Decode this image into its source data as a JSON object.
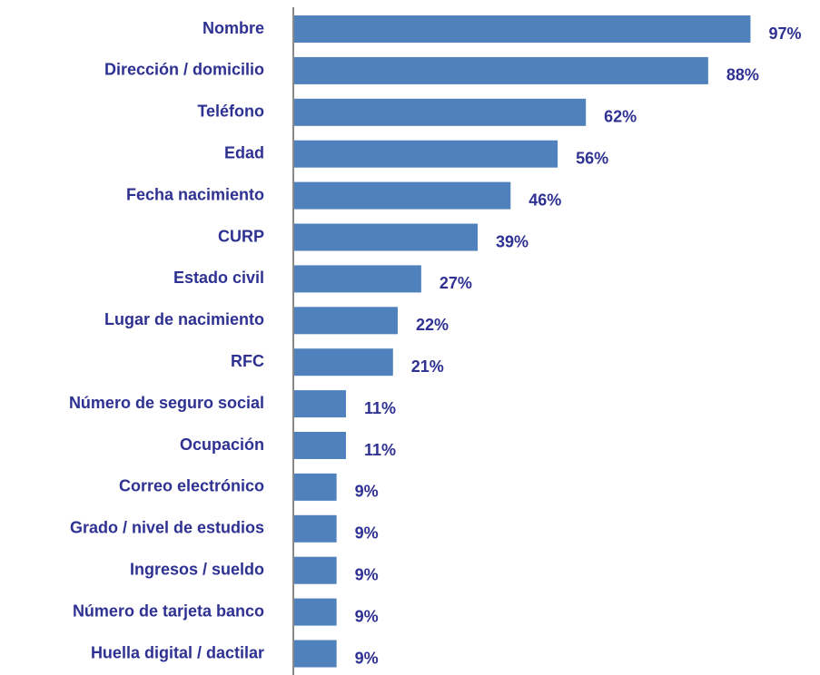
{
  "chart_data": {
    "type": "hbar",
    "categories": [
      "Nombre",
      "Dirección / domicilio",
      "Teléfono",
      "Edad",
      "Fecha nacimiento",
      "CURP",
      "Estado civil",
      "Lugar de nacimiento",
      "RFC",
      "Número de seguro social",
      "Ocupación",
      "Correo electrónico",
      "Grado / nivel de estudios",
      "Ingresos / sueldo",
      "Número de tarjeta  banco",
      "Huella digital  / dactilar"
    ],
    "values": [
      97,
      88,
      62,
      56,
      46,
      39,
      27,
      22,
      21,
      11,
      11,
      9,
      9,
      9,
      9,
      9
    ],
    "value_labels": [
      "97%",
      "88%",
      "62%",
      "56%",
      "46%",
      "39%",
      "27%",
      "22%",
      "21%",
      "11%",
      "11%",
      "9%",
      "9%",
      "9%",
      "9%",
      "9%"
    ],
    "color": "#4f81bd"
  }
}
